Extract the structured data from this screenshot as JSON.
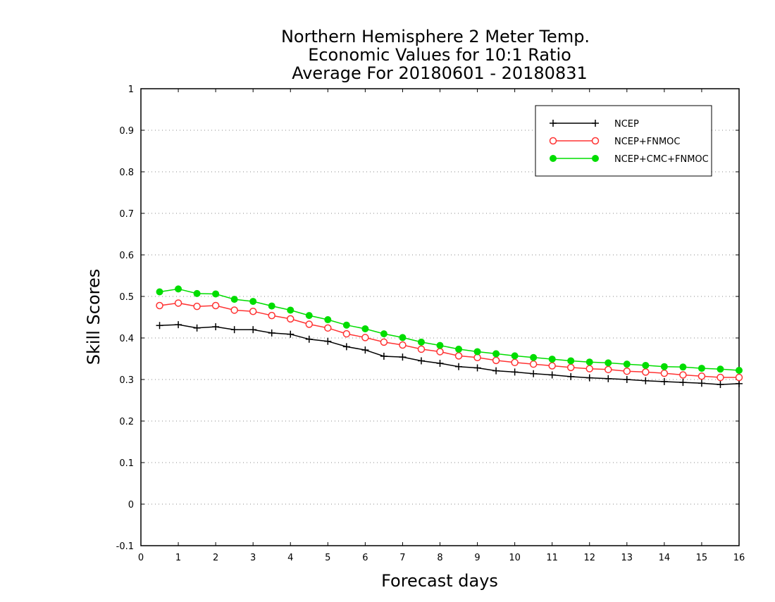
{
  "chart_data": {
    "type": "line",
    "title_lines": [
      "Northern Hemisphere 2 Meter Temp.",
      "Economic Values for 10:1 Ratio",
      "Average For 20180601 - 20180831"
    ],
    "xlabel": "Forecast days",
    "ylabel": "Skill Scores",
    "xlim": [
      0,
      16
    ],
    "ylim": [
      -0.1,
      1
    ],
    "x_ticks": [
      0,
      1,
      2,
      3,
      4,
      5,
      6,
      7,
      8,
      9,
      10,
      11,
      12,
      13,
      14,
      15,
      16
    ],
    "y_ticks": [
      -0.1,
      0,
      0.1,
      0.2,
      0.3,
      0.4,
      0.5,
      0.6,
      0.7,
      0.8,
      0.9,
      1
    ],
    "y_tick_labels": [
      "-0.1",
      "0",
      "0.1",
      "0.2",
      "0.3",
      "0.4",
      "0.5",
      "0.6",
      "0.7",
      "0.8",
      "0.9",
      "1"
    ],
    "grid": "horizontal-dotted",
    "legend_position": "top-right",
    "x": [
      0.5,
      1,
      1.5,
      2,
      2.5,
      3,
      3.5,
      4,
      4.5,
      5,
      5.5,
      6,
      6.5,
      7,
      7.5,
      8,
      8.5,
      9,
      9.5,
      10,
      10.5,
      11,
      11.5,
      12,
      12.5,
      13,
      13.5,
      14,
      14.5,
      15,
      15.5,
      16
    ],
    "series": [
      {
        "name": "NCEP",
        "color": "#000000",
        "marker": "plus",
        "values": [
          0.43,
          0.432,
          0.424,
          0.427,
          0.42,
          0.42,
          0.412,
          0.409,
          0.397,
          0.392,
          0.379,
          0.371,
          0.356,
          0.354,
          0.345,
          0.339,
          0.331,
          0.328,
          0.321,
          0.318,
          0.314,
          0.311,
          0.307,
          0.304,
          0.302,
          0.3,
          0.297,
          0.295,
          0.293,
          0.291,
          0.288,
          0.29
        ]
      },
      {
        "name": "NCEP+FNMOC",
        "color": "#ff3333",
        "marker": "open-circle",
        "values": [
          0.478,
          0.484,
          0.476,
          0.478,
          0.467,
          0.464,
          0.454,
          0.446,
          0.433,
          0.424,
          0.41,
          0.401,
          0.39,
          0.383,
          0.373,
          0.367,
          0.357,
          0.353,
          0.346,
          0.341,
          0.337,
          0.333,
          0.329,
          0.326,
          0.324,
          0.32,
          0.318,
          0.315,
          0.311,
          0.308,
          0.305,
          0.305
        ]
      },
      {
        "name": "NCEP+CMC+FNMOC",
        "color": "#00dd00",
        "marker": "filled-circle",
        "values": [
          0.511,
          0.518,
          0.507,
          0.506,
          0.493,
          0.488,
          0.477,
          0.467,
          0.454,
          0.444,
          0.431,
          0.422,
          0.41,
          0.401,
          0.39,
          0.382,
          0.373,
          0.367,
          0.362,
          0.357,
          0.353,
          0.349,
          0.345,
          0.342,
          0.34,
          0.337,
          0.334,
          0.331,
          0.33,
          0.327,
          0.325,
          0.322
        ]
      }
    ]
  }
}
